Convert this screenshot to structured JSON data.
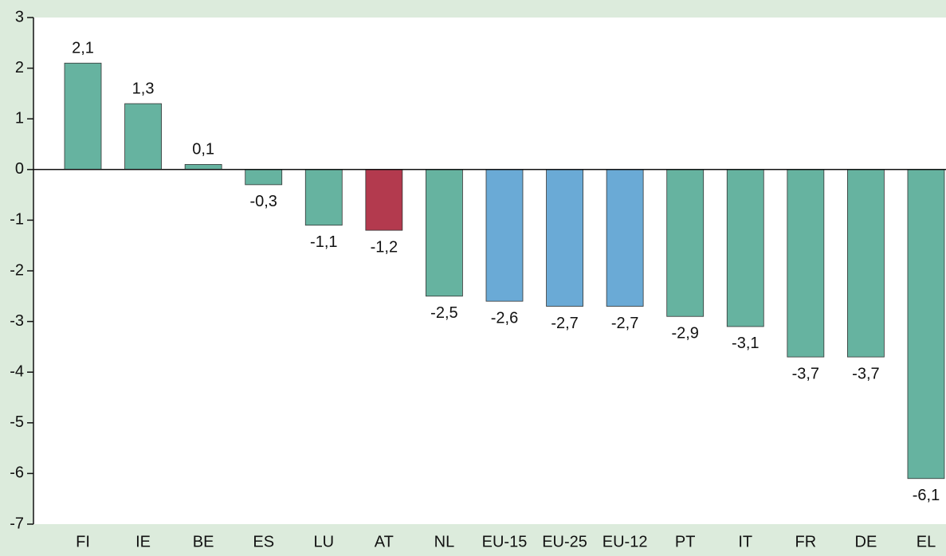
{
  "chart_data": {
    "type": "bar",
    "categories": [
      "FI",
      "IE",
      "BE",
      "ES",
      "LU",
      "AT",
      "NL",
      "EU-15",
      "EU-25",
      "EU-12",
      "PT",
      "IT",
      "FR",
      "DE",
      "EL"
    ],
    "values": [
      2.1,
      1.3,
      0.1,
      -0.3,
      -1.1,
      -1.2,
      -2.5,
      -2.6,
      -2.7,
      -2.7,
      -2.9,
      -3.1,
      -3.7,
      -3.7,
      -6.1
    ],
    "value_labels": [
      "2,1",
      "1,3",
      "0,1",
      "-0,3",
      "-1,1",
      "-1,2",
      "-2,5",
      "-2,6",
      "-2,7",
      "-2,7",
      "-2,9",
      "-3,1",
      "-3,7",
      "-3,7",
      "-6,1"
    ],
    "colors": [
      "#66b3a0",
      "#66b3a0",
      "#66b3a0",
      "#66b3a0",
      "#66b3a0",
      "#b33a4e",
      "#66b3a0",
      "#6aaad6",
      "#6aaad6",
      "#6aaad6",
      "#66b3a0",
      "#66b3a0",
      "#66b3a0",
      "#66b3a0",
      "#66b3a0"
    ],
    "ylim": [
      -7,
      3
    ],
    "yticks": [
      3,
      2,
      1,
      0,
      -1,
      -2,
      -3,
      -4,
      -5,
      -6,
      -7
    ],
    "grid": false
  }
}
